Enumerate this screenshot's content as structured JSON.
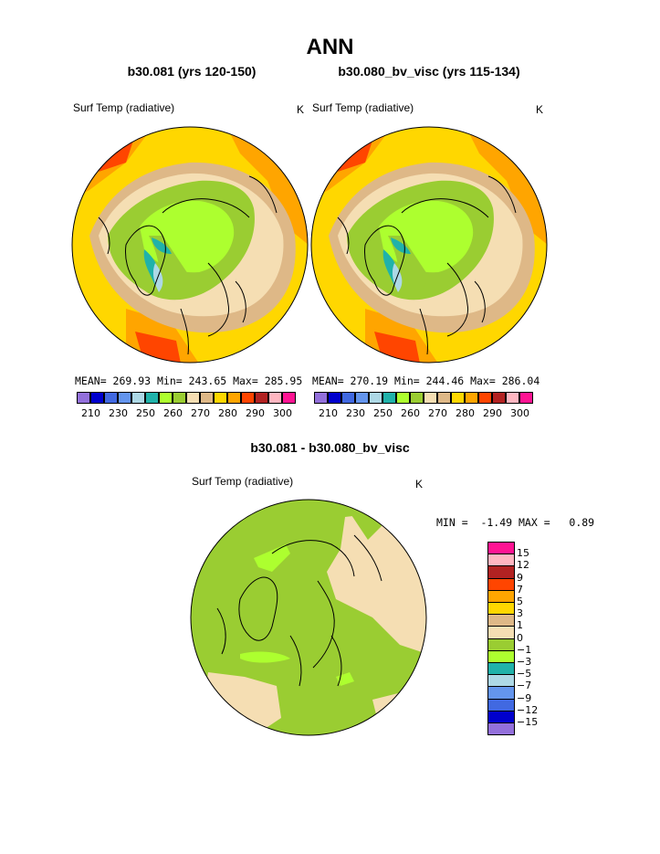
{
  "title": "ANN",
  "colors": {
    "abs_scale": [
      "#9370db",
      "#0000cd",
      "#4169e1",
      "#6495ed",
      "#add8e6",
      "#20b2aa",
      "#adff2f",
      "#9acd32",
      "#f5deb3",
      "#deb887",
      "#ffd700",
      "#ffa500",
      "#ff4500",
      "#b22222",
      "#ffb6c1",
      "#ff1493"
    ],
    "diff_scale": [
      "#9370db",
      "#0000cd",
      "#4169e1",
      "#6495ed",
      "#add8e6",
      "#20b2aa",
      "#adff2f",
      "#9acd32",
      "#f5deb3",
      "#deb887",
      "#ffd700",
      "#ffa500",
      "#ff4500",
      "#b22222",
      "#ffb6c1",
      "#ff1493"
    ]
  },
  "panel_left": {
    "case": "b30.081 (yrs 120-150)",
    "variable": "Surf Temp (radiative)",
    "units": "K",
    "stats": "MEAN= 269.93  Min= 243.65  Max= 285.95",
    "ticks": [
      "210",
      "230",
      "250",
      "260",
      "270",
      "280",
      "290",
      "300"
    ]
  },
  "panel_right": {
    "case": "b30.080_bv_visc (yrs 115-134)",
    "variable": "Surf Temp (radiative)",
    "units": "K",
    "stats": "MEAN= 270.19  Min= 244.46  Max= 286.04",
    "ticks": [
      "210",
      "230",
      "250",
      "260",
      "270",
      "280",
      "290",
      "300"
    ]
  },
  "panel_diff": {
    "case": "b30.081 - b30.080_bv_visc",
    "variable": "Surf Temp (radiative)",
    "units": "K",
    "minmax": "MIN =  -1.49 MAX =   0.89",
    "ticks": [
      "15",
      "12",
      "9",
      "7",
      "5",
      "3",
      "1",
      "0",
      "−1",
      "−3",
      "−5",
      "−7",
      "−9",
      "−12",
      "−15"
    ]
  }
}
